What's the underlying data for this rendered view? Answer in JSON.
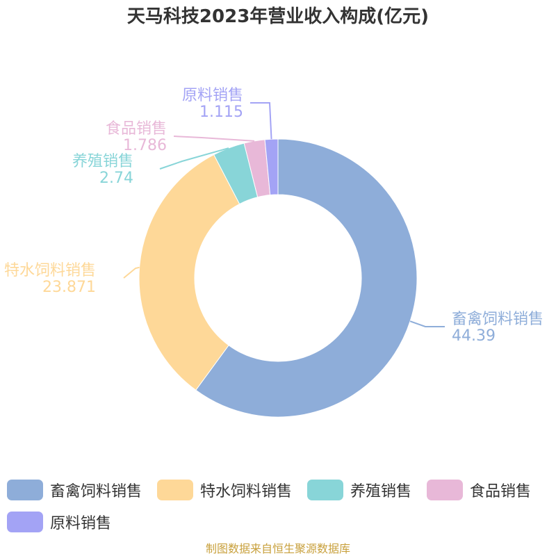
{
  "title": "天马科技2023年营业收入构成(亿元)",
  "source": "制图数据来自恒生聚源数据库",
  "chart_data": {
    "type": "pie",
    "style": "donut",
    "title": "天马科技2023年营业收入构成(亿元)",
    "slices": [
      {
        "name": "畜禽饲料销售",
        "value": 44.39,
        "label": "44.39",
        "color": "#8eadd9"
      },
      {
        "name": "特水饲料销售",
        "value": 23.871,
        "label": "23.871",
        "color": "#fed898"
      },
      {
        "name": "养殖销售",
        "value": 2.74,
        "label": "2.74",
        "color": "#88d5d8"
      },
      {
        "name": "食品销售",
        "value": 1.786,
        "label": "1.786",
        "color": "#e8b8d8"
      },
      {
        "name": "原料销售",
        "value": 1.115,
        "label": "1.115",
        "color": "#a3a3f5"
      }
    ],
    "legend_position": "bottom"
  }
}
